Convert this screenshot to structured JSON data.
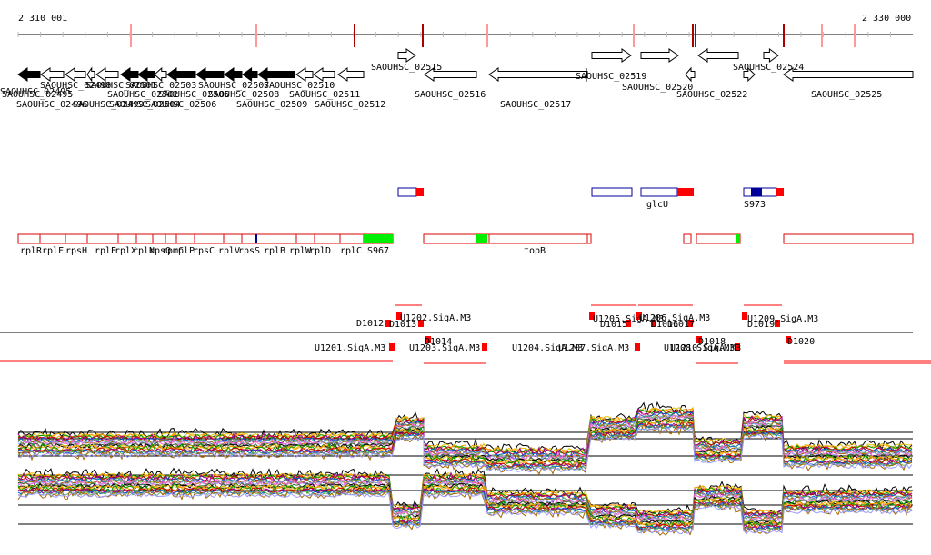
{
  "coords": {
    "start_label": "2 310 001",
    "end_label": "2 330 000"
  },
  "genes": {
    "upper": [
      {
        "id": "SAOUHSC_02495"
      },
      {
        "id": "SAOUHSC_02496"
      },
      {
        "id": "SAOUHSC_02498"
      },
      {
        "id": "SAOUHSC_02499"
      },
      {
        "id": "SAOUHSC_02501"
      },
      {
        "id": "SAOUHSC_02502"
      },
      {
        "id": "SAOUHSC_02503"
      },
      {
        "id": "SAOUHSC_02504"
      },
      {
        "id": "SAOUHSC_02505"
      },
      {
        "id": "SAOUHSC_02506"
      },
      {
        "id": "SAOUHSC_02507"
      },
      {
        "id": "SAOUHSC_02508"
      },
      {
        "id": "SAOUHSC_02509"
      },
      {
        "id": "SAOUHSC_02510"
      },
      {
        "id": "SAOUHSC_02511"
      },
      {
        "id": "SAOUHSC_02512"
      },
      {
        "id": "SAOUHSC_02515"
      },
      {
        "id": "SAOUHSC_02516"
      },
      {
        "id": "SAOUHSC_02517"
      },
      {
        "id": "SAOUHSC_02519"
      },
      {
        "id": "SAOUHSC_02520"
      },
      {
        "id": "SAOUHSC_02522"
      },
      {
        "id": "SAOUHSC_02524"
      },
      {
        "id": "SAOUHSC_02525"
      }
    ]
  },
  "feature_labels": [
    "glcU",
    "S973"
  ],
  "transcripts": [
    "rplR",
    "rplF",
    "rpsH",
    "rplE",
    "rplX",
    "rplN",
    "rpsQ",
    "rpmC",
    "rplP",
    "rpsC",
    "rplV",
    "rpsS",
    "rplB",
    "rplW",
    "rplD",
    "rplC",
    "S967",
    "topB"
  ],
  "tss": [
    "D1012",
    "U1202.SigA.M3",
    "D1013",
    "U1201.SigA.M3",
    "D1014",
    "U1203.SigA.M3",
    "U1205.SigA.M3",
    "U1206.SigA.M3",
    "D1015",
    "D1016",
    "D1017",
    "U1204.SigA.M3",
    "U1207.SigA.M3",
    "D1018",
    "U1208.SigA.M3",
    "U1210.SigA.M3",
    "U1209.SigA.M3",
    "D1019",
    "D1020"
  ],
  "colors": {
    "gene_filled": "#000000",
    "axis": "#000000",
    "tick_major": "#aa0000",
    "tick_minor": "#ff9999",
    "transcript_box": "#dd0000",
    "transcript_green": "#00ee00",
    "transcript_blue": "#000099",
    "rfam_blue": "#000099",
    "rfam_red": "#ff0000",
    "tss_red": "#ff0000",
    "profile_palette": [
      "#000000",
      "#e0c000",
      "#ff9900",
      "#009900",
      "#cc0000",
      "#990099",
      "#0066cc",
      "#66aa66",
      "#aa6600",
      "#9999ff",
      "#ff66cc",
      "#336633"
    ]
  }
}
